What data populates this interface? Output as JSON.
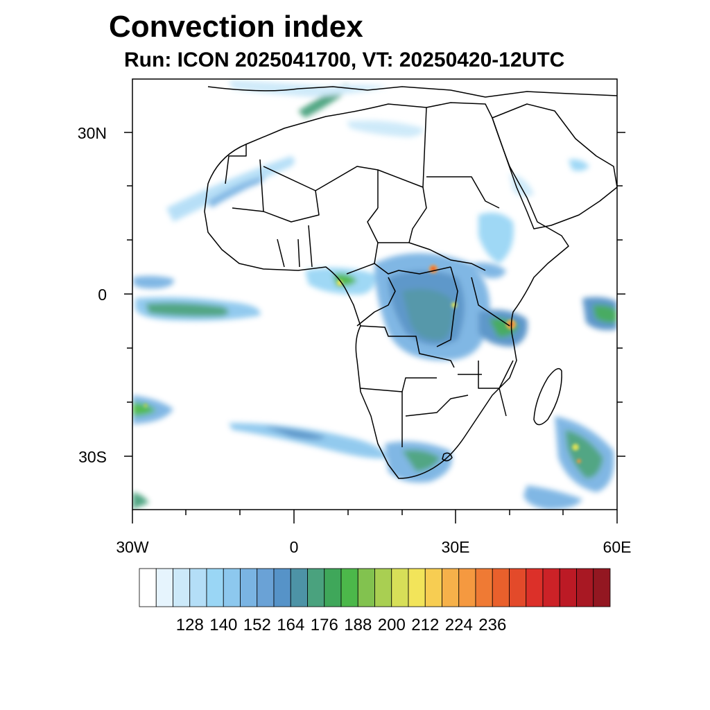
{
  "title": "Convection index",
  "subtitle": "Run: ICON 2025041700,  VT: 20250420-12UTC",
  "map": {
    "region": "Africa",
    "lon_range": [
      -30,
      60
    ],
    "lat_range": [
      -40,
      40
    ],
    "lat_labels": [
      "30N",
      "0",
      "30S"
    ],
    "lon_labels": [
      "30W",
      "0",
      "30E",
      "60E"
    ]
  },
  "colorbar": {
    "labels": [
      "128",
      "140",
      "152",
      "164",
      "176",
      "188",
      "200",
      "212",
      "224",
      "236"
    ],
    "colors": [
      "#ffffff",
      "#e6f4fd",
      "#cce9f9",
      "#b4def7",
      "#9ad6f5",
      "#8dc8ee",
      "#7ab4e3",
      "#6aa2d6",
      "#5693c8",
      "#4d93a6",
      "#4aa27e",
      "#3fa75a",
      "#4cb84a",
      "#82c24f",
      "#a9cf52",
      "#d7df58",
      "#f2e45a",
      "#f7cd52",
      "#f6b14a",
      "#f59940",
      "#ef7a34",
      "#e9602c",
      "#e34a2a",
      "#dc3029",
      "#cc2227",
      "#bc1a25",
      "#a81823",
      "#931721"
    ]
  },
  "chart_data": {
    "type": "heatmap",
    "title": "Convection index",
    "subtitle": "Run: ICON 2025041700,  VT: 20250420-12UTC",
    "x_axis": {
      "ticks": [
        "30W",
        "0",
        "30E",
        "60E"
      ],
      "range": [
        -30,
        60
      ]
    },
    "y_axis": {
      "ticks": [
        "30N",
        "0",
        "30S"
      ],
      "range": [
        -40,
        40
      ]
    },
    "colorbar_levels": [
      128,
      140,
      152,
      164,
      176,
      188,
      200,
      212,
      224,
      236
    ]
  }
}
